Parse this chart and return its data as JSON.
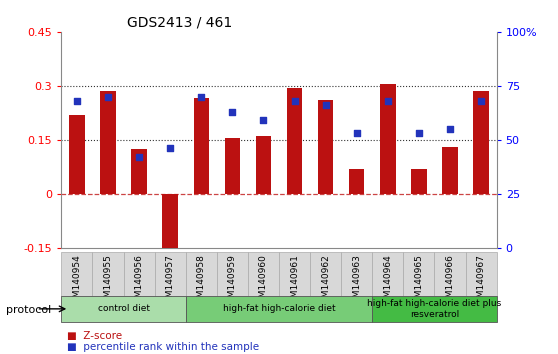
{
  "title": "GDS2413 / 461",
  "samples": [
    "GSM140954",
    "GSM140955",
    "GSM140956",
    "GSM140957",
    "GSM140958",
    "GSM140959",
    "GSM140960",
    "GSM140961",
    "GSM140962",
    "GSM140963",
    "GSM140964",
    "GSM140965",
    "GSM140966",
    "GSM140967"
  ],
  "zscore": [
    0.22,
    0.285,
    0.125,
    -0.185,
    0.265,
    0.155,
    0.16,
    0.295,
    0.26,
    0.07,
    0.305,
    0.07,
    0.13,
    0.285
  ],
  "percentile": [
    68,
    70,
    42,
    46,
    70,
    63,
    59,
    68,
    66,
    53,
    68,
    53,
    55,
    68
  ],
  "bar_color": "#bb1111",
  "dot_color": "#2233bb",
  "ylim_left": [
    -0.15,
    0.45
  ],
  "ylim_right": [
    0,
    100
  ],
  "yticks_left": [
    -0.15,
    0,
    0.15,
    0.3,
    0.45
  ],
  "ytick_labels_left": [
    "-0.15",
    "0",
    "0.15",
    "0.3",
    "0.45"
  ],
  "yticks_right": [
    0,
    25,
    50,
    75,
    100
  ],
  "ytick_labels_right": [
    "0",
    "25",
    "50",
    "75",
    "100%"
  ],
  "hline0_color": "#cc4444",
  "hline0_style": "--",
  "hline015_color": "#333333",
  "hline015_style": ":",
  "hline030_color": "#333333",
  "hline030_style": ":",
  "protocols": [
    {
      "label": "control diet",
      "start": 0,
      "end": 4,
      "color": "#aaddaa"
    },
    {
      "label": "high-fat high-calorie diet",
      "start": 4,
      "end": 10,
      "color": "#77cc77"
    },
    {
      "label": "high-fat high-calorie diet plus\nresveratrol",
      "start": 10,
      "end": 14,
      "color": "#44bb44"
    }
  ],
  "protocol_label": "protocol",
  "legend_zscore": "Z-score",
  "legend_percentile": "percentile rank within the sample",
  "bar_width": 0.5,
  "xtick_bg": "#d8d8d8",
  "xtick_border": "#aaaaaa"
}
